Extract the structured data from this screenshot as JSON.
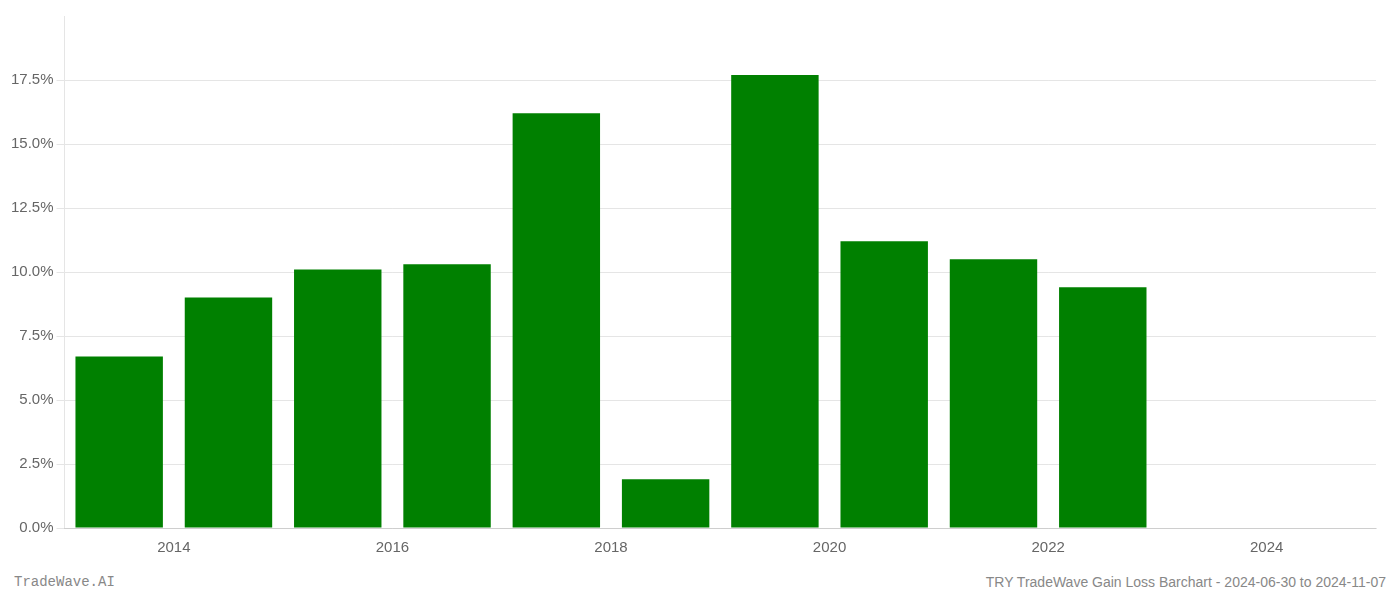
{
  "chart_data": {
    "type": "bar",
    "x": [
      2013.5,
      2014.5,
      2015.5,
      2016.5,
      2017.5,
      2018.5,
      2019.5,
      2020.5,
      2021.5,
      2022.5
    ],
    "values": [
      0.067,
      0.09,
      0.101,
      0.103,
      0.162,
      0.019,
      0.177,
      0.112,
      0.105,
      0.094
    ],
    "color": "#008000",
    "xlim": [
      2013.0,
      2025.0
    ],
    "xticks": [
      2014,
      2016,
      2018,
      2020,
      2022,
      2024
    ],
    "ylim": [
      0,
      0.2
    ],
    "yticks": [
      {
        "value": 0.0,
        "label": "0.0%"
      },
      {
        "value": 0.025,
        "label": "2.5%"
      },
      {
        "value": 0.05,
        "label": "5.0%"
      },
      {
        "value": 0.075,
        "label": "7.5%"
      },
      {
        "value": 0.1,
        "label": "10.0%"
      },
      {
        "value": 0.125,
        "label": "12.5%"
      },
      {
        "value": 0.15,
        "label": "15.0%"
      },
      {
        "value": 0.175,
        "label": "17.5%"
      }
    ],
    "grid": "y",
    "annotations": [
      "TradeWave.AI",
      "TRY TradeWave Gain Loss Barchart - 2024-06-30 to 2024-11-07"
    ]
  }
}
